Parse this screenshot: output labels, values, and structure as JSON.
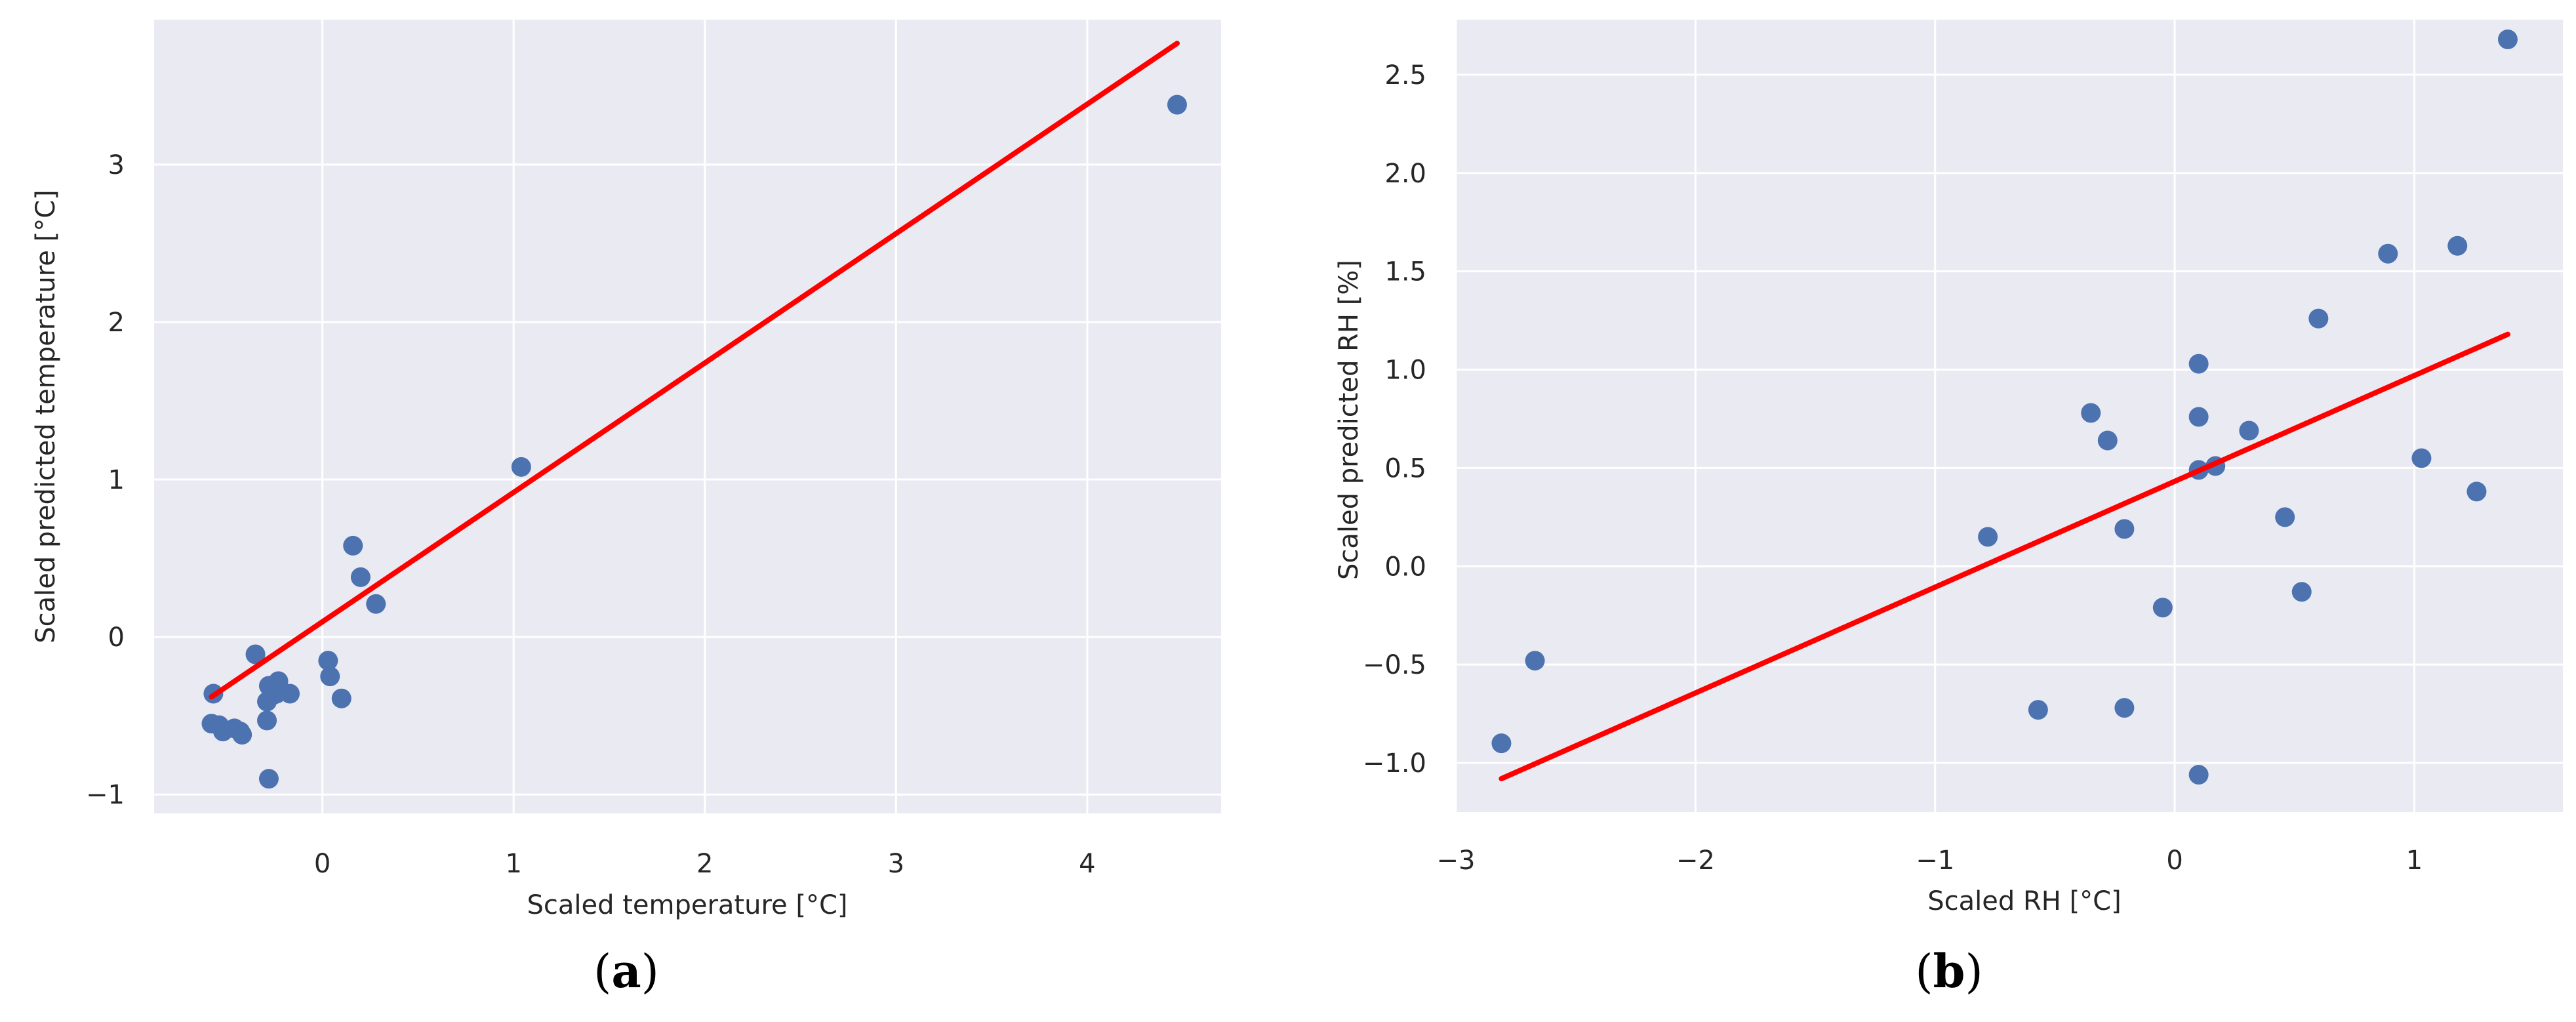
{
  "chart_data": [
    {
      "type": "scatter",
      "panel_label": "a",
      "title": "",
      "xlabel": "Scaled temperature [°C]",
      "ylabel": "Scaled predicted temperature [°C]",
      "xlim": [
        -0.88,
        4.7
      ],
      "ylim": [
        -1.12,
        3.92
      ],
      "xticks": [
        0,
        1,
        2,
        3,
        4
      ],
      "yticks": [
        -1,
        0,
        1,
        2,
        3
      ],
      "xtick_labels": [
        "0",
        "1",
        "2",
        "3",
        "4"
      ],
      "ytick_labels": [
        "−1",
        "0",
        "1",
        "2",
        "3"
      ],
      "grid": true,
      "colors": {
        "background": "#eaeaf2",
        "grid": "#ffffff",
        "points": "#4c72b0",
        "fit_line": "#ff0000"
      },
      "points": [
        {
          "x": -0.57,
          "y": -0.36
        },
        {
          "x": -0.58,
          "y": -0.55
        },
        {
          "x": -0.54,
          "y": -0.56
        },
        {
          "x": -0.52,
          "y": -0.6
        },
        {
          "x": -0.46,
          "y": -0.58
        },
        {
          "x": -0.43,
          "y": -0.6
        },
        {
          "x": -0.42,
          "y": -0.62
        },
        {
          "x": -0.35,
          "y": -0.11
        },
        {
          "x": -0.29,
          "y": -0.53
        },
        {
          "x": -0.29,
          "y": -0.41
        },
        {
          "x": -0.28,
          "y": -0.31
        },
        {
          "x": -0.26,
          "y": -0.37
        },
        {
          "x": -0.24,
          "y": -0.36
        },
        {
          "x": -0.23,
          "y": -0.28
        },
        {
          "x": -0.28,
          "y": -0.9
        },
        {
          "x": -0.17,
          "y": -0.36
        },
        {
          "x": 0.03,
          "y": -0.15
        },
        {
          "x": 0.04,
          "y": -0.25
        },
        {
          "x": 0.1,
          "y": -0.39
        },
        {
          "x": 0.16,
          "y": 0.58
        },
        {
          "x": 0.2,
          "y": 0.38
        },
        {
          "x": 0.28,
          "y": 0.21
        },
        {
          "x": 1.04,
          "y": 1.08
        },
        {
          "x": 4.47,
          "y": 3.38
        }
      ],
      "fit_line": {
        "x": [
          -0.58,
          4.47
        ],
        "y": [
          -0.38,
          3.77
        ]
      }
    },
    {
      "type": "scatter",
      "panel_label": "b",
      "title": "",
      "xlabel": "Scaled RH [°C]",
      "ylabel": "Scaled predicted RH [%]",
      "xlim": [
        -3.0,
        1.62
      ],
      "ylim": [
        -1.25,
        2.78
      ],
      "xticks": [
        -3,
        -2,
        -1,
        0,
        1
      ],
      "yticks": [
        -1.0,
        -0.5,
        0.0,
        0.5,
        1.0,
        1.5,
        2.0,
        2.5
      ],
      "xtick_labels": [
        "−3",
        "−2",
        "−1",
        "0",
        "1"
      ],
      "ytick_labels": [
        "−1.0",
        "−0.5",
        "0.0",
        "0.5",
        "1.0",
        "1.5",
        "2.0",
        "2.5"
      ],
      "grid": true,
      "colors": {
        "background": "#eaeaf2",
        "grid": "#ffffff",
        "points": "#4c72b0",
        "fit_line": "#ff0000"
      },
      "points": [
        {
          "x": -2.81,
          "y": -0.9
        },
        {
          "x": -2.67,
          "y": -0.48
        },
        {
          "x": -0.78,
          "y": 0.15
        },
        {
          "x": -0.57,
          "y": -0.73
        },
        {
          "x": -0.35,
          "y": 0.78
        },
        {
          "x": -0.28,
          "y": 0.64
        },
        {
          "x": -0.21,
          "y": 0.19
        },
        {
          "x": -0.21,
          "y": -0.72
        },
        {
          "x": -0.05,
          "y": -0.21
        },
        {
          "x": 0.1,
          "y": 1.03
        },
        {
          "x": 0.1,
          "y": 0.76
        },
        {
          "x": 0.1,
          "y": 0.49
        },
        {
          "x": 0.1,
          "y": -1.06
        },
        {
          "x": 0.17,
          "y": 0.51
        },
        {
          "x": 0.31,
          "y": 0.69
        },
        {
          "x": 0.46,
          "y": 0.25
        },
        {
          "x": 0.53,
          "y": -0.13
        },
        {
          "x": 0.6,
          "y": 1.26
        },
        {
          "x": 0.89,
          "y": 1.59
        },
        {
          "x": 1.03,
          "y": 0.55
        },
        {
          "x": 1.18,
          "y": 1.63
        },
        {
          "x": 1.26,
          "y": 0.38
        },
        {
          "x": 1.39,
          "y": 2.68
        }
      ],
      "fit_line": {
        "x": [
          -2.81,
          1.39
        ],
        "y": [
          -1.08,
          1.18
        ]
      }
    }
  ]
}
